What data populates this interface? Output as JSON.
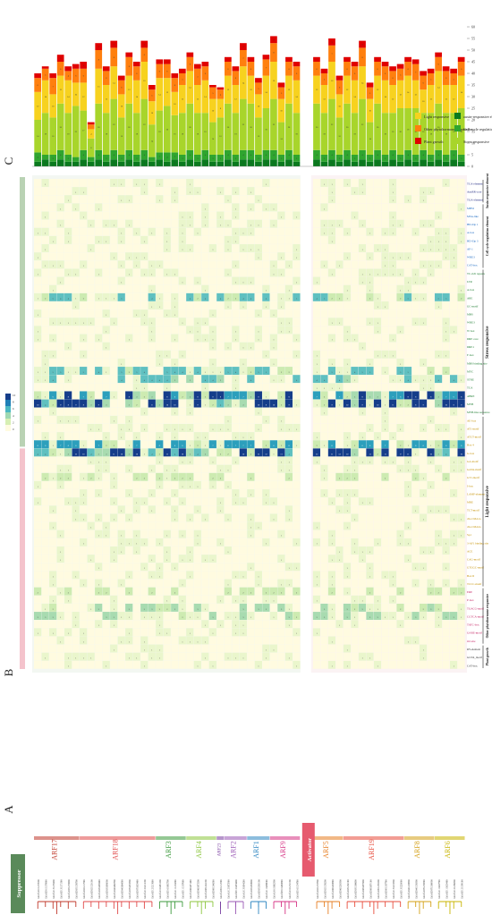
{
  "panels": {
    "a": "A",
    "b": "B",
    "c": "C"
  },
  "group_bands": {
    "suppressor": "Suppressor",
    "activator": "Activator"
  },
  "families": [
    {
      "name": "ARF17",
      "color": "#c0392b",
      "rows": 6
    },
    {
      "name": "ARF18",
      "color": "#e04848",
      "rows": 10
    },
    {
      "name": "ARF3",
      "color": "#3c9a3c",
      "rows": 4
    },
    {
      "name": "ARF4",
      "color": "#8cc63e",
      "rows": 4
    },
    {
      "name": "ARF23",
      "color": "#7a3fa0",
      "rows": 1
    },
    {
      "name": "ARF2",
      "color": "#9b59b6",
      "rows": 3
    },
    {
      "name": "ARF1",
      "color": "#2e86c1",
      "rows": 3
    },
    {
      "name": "ARF9",
      "color": "#d63384",
      "rows": 4
    },
    {
      "name": "ARF5",
      "color": "#e67e22",
      "rows": 4
    },
    {
      "name": "ARF19",
      "color": "#e74c3c",
      "rows": 8
    },
    {
      "name": "ARF8",
      "color": "#d4a017",
      "rows": 4
    },
    {
      "name": "ARF6",
      "color": "#c8b400",
      "rows": 4
    }
  ],
  "gene_ids": [
    "GhArf.A01G172900",
    "GhArf.D01G170800",
    "GhArf.A13G170400",
    "GhArf.D13G171500",
    "GhArf.A05G155600",
    "GhArf.D05G156700",
    "GhArf.A02G117300",
    "GhArf.D02G120100",
    "GhArf.A03G098400",
    "GhArf.D03G096900",
    "GhArf.A04G062700",
    "GhArf.D04G064500",
    "GhArf.A07G033300",
    "GhArf.D07G035400",
    "GhArf.A12G214100",
    "GhArf.D12G215600",
    "GhArf.A10G081200",
    "GhArf.D10G082700",
    "GhArf.A11G194300",
    "GhArf.D11G197600",
    "GhArf.A06G071400",
    "GhArf.D06G073200",
    "GhArf.A08G144100",
    "GhArf.D08G146500",
    "GhArf.A09G112500",
    "GhArf.A12G072900",
    "GhArf.D12G074400",
    "GhArf.A13G094200",
    "GhArf.A05G303600",
    "GhArf.D05G305100",
    "GhArf.A11G088900",
    "GhArf.A01G062300",
    "GhArf.D01G063800",
    "GhArf.A10G152100",
    "GhArf.D10G154700",
    "GhArf.A02G153700",
    "GhArf.D02G156200",
    "GhArf.A06G203800",
    "GhArf.D06G205300",
    "GhArf.A03G162100",
    "GhArf.D03G160600",
    "GhArf.A08G077400",
    "GhArf.D08G079100",
    "GhArf.A09G185200",
    "GhArf.D09G187700",
    "GhArf.A13G218300",
    "GhArf.D13G220900",
    "GhArf.A04G128800",
    "GhArf.D04G130300",
    "GhArf.A07G158500",
    "GhArf.D07G160900",
    "GhArf.A11G027700",
    "GhArf.D11G029400",
    "GhArf.A12G186300",
    "GhArf.D12G188100"
  ],
  "elements": [
    {
      "name": "TCA-element",
      "cat": "auxin"
    },
    {
      "name": "AuxRR-core",
      "cat": "auxin"
    },
    {
      "name": "TGA-element",
      "cat": "auxin"
    },
    {
      "name": "MBSI",
      "cat": "cell"
    },
    {
      "name": "MSA-like",
      "cat": "cell"
    },
    {
      "name": "HD-Zip 1",
      "cat": "cell"
    },
    {
      "name": "A-box",
      "cat": "cell"
    },
    {
      "name": "HD-Zip 3",
      "cat": "cell"
    },
    {
      "name": "AP-1",
      "cat": "cell"
    },
    {
      "name": "WRE3",
      "cat": "cell"
    },
    {
      "name": "CAT-box",
      "cat": "cell"
    },
    {
      "name": "TC-rich repeats",
      "cat": "stress"
    },
    {
      "name": "LTR",
      "cat": "stress"
    },
    {
      "name": "A-box",
      "cat": "stress"
    },
    {
      "name": "ARE",
      "cat": "stress"
    },
    {
      "name": "GC-motif",
      "cat": "stress"
    },
    {
      "name": "MBS",
      "cat": "stress"
    },
    {
      "name": "WRE3",
      "cat": "stress"
    },
    {
      "name": "W box",
      "cat": "stress"
    },
    {
      "name": "DRE core",
      "cat": "stress"
    },
    {
      "name": "DRE1",
      "cat": "stress"
    },
    {
      "name": "F-box",
      "cat": "stress"
    },
    {
      "name": "MBS binding site",
      "cat": "stress"
    },
    {
      "name": "MYC",
      "cat": "stress"
    },
    {
      "name": "STRE",
      "cat": "stress"
    },
    {
      "name": "TCA",
      "cat": "stress"
    },
    {
      "name": "ABRE",
      "cat": "stress"
    },
    {
      "name": "MYB",
      "cat": "stress"
    },
    {
      "name": "MYB-like sequence",
      "cat": "stress"
    },
    {
      "name": "AE-box",
      "cat": "light"
    },
    {
      "name": "AT1-motif",
      "cat": "light"
    },
    {
      "name": "ATCT-motif",
      "cat": "light"
    },
    {
      "name": "Box 4",
      "cat": "light"
    },
    {
      "name": "G-box",
      "cat": "light"
    },
    {
      "name": "GA-motif",
      "cat": "light"
    },
    {
      "name": "GATA-motif",
      "cat": "light"
    },
    {
      "name": "GT1-motif",
      "cat": "light"
    },
    {
      "name": "I-box",
      "cat": "light"
    },
    {
      "name": "LAMP-element",
      "cat": "light"
    },
    {
      "name": "MRE",
      "cat": "light"
    },
    {
      "name": "TCT-motif",
      "cat": "light"
    },
    {
      "name": "chs-CMA1a",
      "cat": "light"
    },
    {
      "name": "chs-CMA2a",
      "cat": "light"
    },
    {
      "name": "Sp1",
      "cat": "light"
    },
    {
      "name": "3-AF1 binding site",
      "cat": "light"
    },
    {
      "name": "ACE",
      "cat": "light"
    },
    {
      "name": "CAG-motif",
      "cat": "light"
    },
    {
      "name": "GTGGC-motif",
      "cat": "light"
    },
    {
      "name": "Box II",
      "cat": "light"
    },
    {
      "name": "TCCC-motif",
      "cat": "light"
    },
    {
      "name": "ERE",
      "cat": "other"
    },
    {
      "name": "P-box",
      "cat": "other"
    },
    {
      "name": "TGACG-motif",
      "cat": "other"
    },
    {
      "name": "CGTCA-motif",
      "cat": "other"
    },
    {
      "name": "TATC-box",
      "cat": "other"
    },
    {
      "name": "GARE-motif",
      "cat": "other"
    },
    {
      "name": "O2-site",
      "cat": "other"
    },
    {
      "name": "RY-element",
      "cat": "plant"
    },
    {
      "name": "GCN4_motif",
      "cat": "plant"
    },
    {
      "name": "CAT-box",
      "cat": "plant"
    }
  ],
  "category_labels": {
    "auxin": "Auxin responsive element",
    "cell": "Cell cycle regulation element",
    "stress": "Stress responsive",
    "light": "Light responsive",
    "other": "Other phytohormone responsive",
    "plant": "Plant growth"
  },
  "colors": {
    "auxin": "#1a237e",
    "cell": "#1565c0",
    "stress": "#1b7a2e",
    "light": "#c49000",
    "other": "#c2185b",
    "plant": "#333333",
    "heat_low": "#fffbe0",
    "heat_mid": "#b6e0a6",
    "heat_high": "#26a6b8",
    "heat_max": "#153d8a",
    "bar_red": "#e00000",
    "bar_orange": "#ff7f0e",
    "bar_yellow": "#f7d21f",
    "bar_lime": "#a8d52b",
    "bar_green": "#2fa52f",
    "bar_dkgreen": "#0a7a1e",
    "suppressor_band": "#b9d2b4",
    "activator_band": "#f4c3cc"
  },
  "legend": {
    "items": [
      {
        "label": "Plant growth",
        "color": "bar_red"
      },
      {
        "label": "Other phytohormone responsive",
        "color": "bar_orange"
      },
      {
        "label": "Light responsive",
        "color": "bar_yellow"
      },
      {
        "label": "Stress responsive",
        "color": "bar_lime"
      },
      {
        "label": "Cell cycle regulation element",
        "color": "bar_green"
      },
      {
        "label": "auxin-responsive element",
        "color": "bar_dkgreen"
      }
    ]
  },
  "scale_ticks": [
    "0",
    "5",
    "10",
    "15",
    "20",
    "25",
    "30",
    "35",
    "40",
    "45",
    "50",
    "55",
    "60"
  ],
  "colorbar_ticks": [
    "0",
    "2",
    "4",
    "6",
    "8",
    "10"
  ],
  "chart_data": {
    "type": "bar",
    "series_order": [
      "bar_dkgreen",
      "bar_green",
      "bar_lime",
      "bar_yellow",
      "bar_orange",
      "bar_red"
    ],
    "bars": [
      [
        2,
        4,
        14,
        12,
        6,
        2
      ],
      [
        3,
        2,
        18,
        14,
        5,
        1
      ],
      [
        2,
        3,
        16,
        10,
        7,
        2
      ],
      [
        3,
        4,
        20,
        12,
        6,
        3
      ],
      [
        2,
        3,
        18,
        14,
        4,
        2
      ],
      [
        2,
        2,
        22,
        10,
        6,
        2
      ],
      [
        3,
        4,
        17,
        12,
        6,
        3
      ],
      [
        2,
        2,
        8,
        4,
        2,
        1
      ],
      [
        3,
        4,
        20,
        15,
        8,
        3
      ],
      [
        2,
        3,
        18,
        12,
        6,
        2
      ],
      [
        3,
        4,
        22,
        14,
        8,
        3
      ],
      [
        2,
        3,
        16,
        10,
        6,
        2
      ],
      [
        3,
        4,
        20,
        12,
        8,
        2
      ],
      [
        2,
        3,
        18,
        14,
        6,
        2
      ],
      [
        3,
        4,
        22,
        16,
        6,
        3
      ],
      [
        2,
        2,
        14,
        10,
        5,
        2
      ],
      [
        3,
        3,
        18,
        14,
        6,
        2
      ],
      [
        2,
        4,
        20,
        12,
        6,
        2
      ],
      [
        3,
        3,
        16,
        10,
        6,
        2
      ],
      [
        2,
        3,
        18,
        12,
        5,
        2
      ],
      [
        3,
        4,
        20,
        14,
        6,
        2
      ],
      [
        2,
        3,
        18,
        12,
        7,
        2
      ],
      [
        3,
        4,
        16,
        14,
        6,
        2
      ],
      [
        2,
        3,
        14,
        10,
        5,
        1
      ],
      [
        2,
        3,
        16,
        8,
        4,
        1
      ],
      [
        3,
        4,
        20,
        12,
        6,
        2
      ],
      [
        2,
        3,
        18,
        12,
        6,
        2
      ],
      [
        3,
        4,
        22,
        14,
        7,
        3
      ],
      [
        3,
        4,
        20,
        12,
        6,
        2
      ],
      [
        2,
        3,
        16,
        10,
        5,
        2
      ],
      [
        3,
        4,
        18,
        14,
        7,
        2
      ],
      [
        3,
        4,
        22,
        16,
        8,
        3
      ],
      [
        2,
        3,
        14,
        10,
        5,
        2
      ],
      [
        3,
        4,
        20,
        12,
        6,
        2
      ],
      [
        2,
        3,
        18,
        14,
        6,
        2
      ],
      [
        3,
        4,
        20,
        12,
        6,
        2
      ],
      [
        2,
        3,
        18,
        12,
        5,
        2
      ],
      [
        3,
        4,
        22,
        16,
        7,
        3
      ],
      [
        2,
        3,
        16,
        10,
        6,
        2
      ],
      [
        3,
        4,
        20,
        12,
        6,
        2
      ],
      [
        2,
        3,
        18,
        14,
        6,
        2
      ],
      [
        3,
        4,
        22,
        14,
        8,
        3
      ],
      [
        2,
        3,
        14,
        10,
        5,
        2
      ],
      [
        3,
        4,
        20,
        12,
        6,
        2
      ],
      [
        2,
        3,
        18,
        14,
        6,
        2
      ],
      [
        3,
        4,
        16,
        12,
        6,
        2
      ],
      [
        2,
        3,
        20,
        12,
        5,
        2
      ],
      [
        3,
        4,
        18,
        14,
        6,
        2
      ],
      [
        2,
        3,
        20,
        12,
        7,
        2
      ],
      [
        3,
        4,
        16,
        10,
        6,
        2
      ],
      [
        2,
        3,
        18,
        12,
        5,
        2
      ],
      [
        3,
        4,
        20,
        14,
        6,
        2
      ],
      [
        2,
        3,
        18,
        12,
        6,
        2
      ],
      [
        3,
        4,
        16,
        12,
        5,
        2
      ],
      [
        2,
        3,
        20,
        14,
        6,
        2
      ]
    ]
  }
}
